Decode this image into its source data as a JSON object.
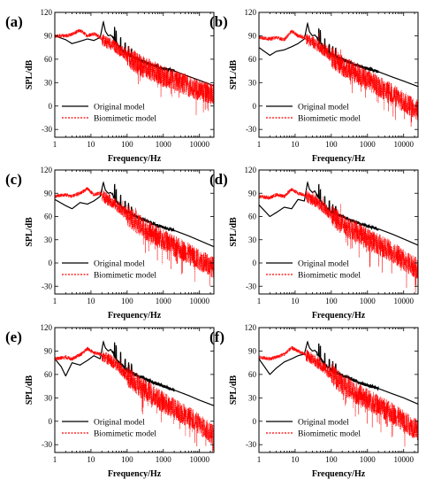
{
  "figure": {
    "colors": {
      "original": "#000000",
      "biomimetic": "#ff0000",
      "axis": "#000000"
    }
  },
  "chart_data": [
    {
      "type": "line",
      "panel_label": "(a)",
      "xlabel": "Frequency/Hz",
      "ylabel": "SPL/dB",
      "xscale": "log",
      "xlim": [
        1,
        25000
      ],
      "ylim": [
        -40,
        120
      ],
      "xticks": [
        1,
        10,
        100,
        1000,
        10000
      ],
      "xtick_labels": [
        "1",
        "10",
        "100",
        "1000",
        "10000"
      ],
      "yticks": [
        -30,
        0,
        30,
        60,
        90,
        120
      ],
      "ytick_labels": [
        "-30",
        "0",
        "30",
        "60",
        "90",
        "120"
      ],
      "legend": {
        "position": "bottom-left",
        "entries": [
          "Original model",
          "Biomimetic model"
        ]
      },
      "series": [
        {
          "name": "Original model",
          "style": "solid",
          "color": "#000000",
          "x": [
            1,
            2,
            3,
            5,
            8,
            12,
            18,
            22,
            25,
            30,
            35,
            40,
            50,
            70,
            100,
            200,
            500,
            1000,
            2000,
            5000,
            10000,
            25000
          ],
          "y": [
            90,
            85,
            80,
            83,
            86,
            84,
            88,
            108,
            96,
            90,
            91,
            88,
            80,
            72,
            66,
            60,
            52,
            48,
            45,
            38,
            33,
            26
          ]
        },
        {
          "name": "Biomimetic model",
          "style": "dotted",
          "color": "#ff0000",
          "x": [
            1,
            2,
            3,
            5,
            8,
            12,
            18,
            25,
            35,
            50,
            70,
            100,
            200,
            500,
            1000,
            2000,
            5000,
            10000,
            25000
          ],
          "y": [
            90,
            90,
            92,
            97,
            90,
            93,
            88,
            82,
            80,
            75,
            70,
            64,
            54,
            45,
            38,
            33,
            26,
            20,
            14
          ]
        }
      ]
    },
    {
      "type": "line",
      "panel_label": "(b)",
      "xlabel": "Frequency/Hz",
      "ylabel": "SPL/dB",
      "xscale": "log",
      "xlim": [
        1,
        25000
      ],
      "ylim": [
        -40,
        120
      ],
      "xticks": [
        1,
        10,
        100,
        1000,
        10000
      ],
      "xtick_labels": [
        "1",
        "10",
        "100",
        "1000",
        "10000"
      ],
      "yticks": [
        -30,
        0,
        30,
        60,
        90,
        120
      ],
      "ytick_labels": [
        "-30",
        "0",
        "30",
        "60",
        "90",
        "120"
      ],
      "legend": {
        "position": "bottom-left",
        "entries": [
          "Original model",
          "Biomimetic model"
        ]
      },
      "series": [
        {
          "name": "Original model",
          "style": "solid",
          "color": "#000000",
          "x": [
            1,
            2,
            3,
            5,
            8,
            12,
            18,
            22,
            25,
            30,
            35,
            40,
            50,
            70,
            100,
            200,
            500,
            1000,
            2000,
            5000,
            10000,
            25000
          ],
          "y": [
            75,
            65,
            70,
            72,
            76,
            80,
            86,
            106,
            95,
            90,
            91,
            88,
            80,
            72,
            66,
            60,
            52,
            48,
            44,
            37,
            32,
            25
          ]
        },
        {
          "name": "Biomimetic model",
          "style": "dotted",
          "color": "#ff0000",
          "x": [
            1,
            2,
            3,
            5,
            8,
            12,
            18,
            25,
            35,
            50,
            70,
            100,
            200,
            500,
            1000,
            2000,
            5000,
            10000,
            25000
          ],
          "y": [
            88,
            86,
            88,
            85,
            96,
            90,
            88,
            84,
            80,
            75,
            70,
            63,
            52,
            42,
            34,
            26,
            15,
            5,
            -5
          ]
        }
      ]
    },
    {
      "type": "line",
      "panel_label": "(c)",
      "xlabel": "Frequency/Hz",
      "ylabel": "SPL/dB",
      "xscale": "log",
      "xlim": [
        1,
        25000
      ],
      "ylim": [
        -40,
        120
      ],
      "xticks": [
        1,
        10,
        100,
        1000,
        10000
      ],
      "xtick_labels": [
        "1",
        "10",
        "100",
        "1000",
        "10000"
      ],
      "yticks": [
        -30,
        0,
        30,
        60,
        90,
        120
      ],
      "ytick_labels": [
        "-30",
        "0",
        "30",
        "60",
        "90",
        "120"
      ],
      "legend": {
        "position": "bottom-left",
        "entries": [
          "Original model",
          "Biomimetic model"
        ]
      },
      "series": [
        {
          "name": "Original model",
          "style": "solid",
          "color": "#000000",
          "x": [
            1,
            2,
            3,
            5,
            8,
            12,
            18,
            22,
            25,
            30,
            35,
            40,
            50,
            70,
            100,
            200,
            500,
            1000,
            2000,
            5000,
            10000,
            25000
          ],
          "y": [
            82,
            74,
            70,
            78,
            76,
            80,
            86,
            104,
            94,
            90,
            91,
            88,
            80,
            72,
            66,
            59,
            51,
            46,
            42,
            35,
            29,
            21
          ]
        },
        {
          "name": "Biomimetic model",
          "style": "dotted",
          "color": "#ff0000",
          "x": [
            1,
            2,
            3,
            5,
            8,
            12,
            18,
            25,
            35,
            50,
            70,
            100,
            200,
            500,
            1000,
            2000,
            5000,
            10000,
            25000
          ],
          "y": [
            86,
            88,
            86,
            90,
            96,
            88,
            90,
            84,
            80,
            75,
            68,
            62,
            50,
            38,
            30,
            22,
            12,
            4,
            -6
          ]
        }
      ]
    },
    {
      "type": "line",
      "panel_label": "(d)",
      "xlabel": "Frequency/Hz",
      "ylabel": "SPL/dB",
      "xscale": "log",
      "xlim": [
        1,
        25000
      ],
      "ylim": [
        -40,
        120
      ],
      "xticks": [
        1,
        10,
        100,
        1000,
        10000
      ],
      "xtick_labels": [
        "1",
        "10",
        "100",
        "1000",
        "10000"
      ],
      "yticks": [
        -30,
        0,
        30,
        60,
        90,
        120
      ],
      "ytick_labels": [
        "-30",
        "0",
        "30",
        "60",
        "90",
        "120"
      ],
      "legend": {
        "position": "bottom-left",
        "entries": [
          "Original model",
          "Biomimetic model"
        ]
      },
      "series": [
        {
          "name": "Original model",
          "style": "solid",
          "color": "#000000",
          "x": [
            1,
            2,
            3,
            5,
            8,
            12,
            18,
            22,
            25,
            30,
            35,
            40,
            50,
            70,
            100,
            200,
            500,
            1000,
            2000,
            5000,
            10000,
            25000
          ],
          "y": [
            75,
            60,
            65,
            72,
            70,
            82,
            80,
            104,
            95,
            91,
            93,
            88,
            80,
            72,
            66,
            60,
            52,
            48,
            44,
            37,
            31,
            23
          ]
        },
        {
          "name": "Biomimetic model",
          "style": "dotted",
          "color": "#ff0000",
          "x": [
            1,
            2,
            3,
            5,
            8,
            12,
            18,
            25,
            35,
            50,
            70,
            100,
            200,
            500,
            1000,
            2000,
            5000,
            10000,
            25000
          ],
          "y": [
            86,
            84,
            88,
            86,
            95,
            90,
            88,
            84,
            80,
            75,
            69,
            62,
            50,
            40,
            32,
            24,
            14,
            4,
            -8
          ]
        }
      ]
    },
    {
      "type": "line",
      "panel_label": "(e)",
      "xlabel": "Frequency/Hz",
      "ylabel": "SPL/dB",
      "xscale": "log",
      "xlim": [
        1,
        25000
      ],
      "ylim": [
        -40,
        120
      ],
      "xticks": [
        1,
        10,
        100,
        1000,
        10000
      ],
      "xtick_labels": [
        "1",
        "10",
        "100",
        "1000",
        "10000"
      ],
      "yticks": [
        -30,
        0,
        30,
        60,
        90,
        120
      ],
      "ytick_labels": [
        "-30",
        "0",
        "30",
        "60",
        "90",
        "120"
      ],
      "legend": {
        "position": "bottom-left",
        "entries": [
          "Original model",
          "Biomimetic model"
        ]
      },
      "series": [
        {
          "name": "Original model",
          "style": "solid",
          "color": "#000000",
          "x": [
            1,
            1.5,
            2,
            3,
            5,
            8,
            12,
            18,
            22,
            25,
            30,
            35,
            40,
            50,
            70,
            100,
            200,
            500,
            1000,
            2000,
            5000,
            10000,
            25000
          ],
          "y": [
            80,
            70,
            58,
            75,
            72,
            78,
            84,
            80,
            102,
            94,
            90,
            92,
            88,
            80,
            72,
            65,
            58,
            50,
            45,
            40,
            33,
            27,
            20
          ]
        },
        {
          "name": "Biomimetic model",
          "style": "dotted",
          "color": "#ff0000",
          "x": [
            1,
            2,
            3,
            5,
            8,
            12,
            18,
            25,
            35,
            50,
            70,
            100,
            200,
            500,
            1000,
            2000,
            5000,
            10000,
            25000
          ],
          "y": [
            80,
            82,
            80,
            85,
            93,
            88,
            86,
            82,
            78,
            72,
            66,
            58,
            46,
            34,
            24,
            16,
            6,
            -4,
            -18
          ]
        }
      ]
    },
    {
      "type": "line",
      "panel_label": "(f)",
      "xlabel": "Frequency/Hz",
      "ylabel": "SPL/dB",
      "xscale": "log",
      "xlim": [
        1,
        25000
      ],
      "ylim": [
        -40,
        120
      ],
      "xticks": [
        1,
        10,
        100,
        1000,
        10000
      ],
      "xtick_labels": [
        "1",
        "10",
        "100",
        "1000",
        "10000"
      ],
      "yticks": [
        -30,
        0,
        30,
        60,
        90,
        120
      ],
      "ytick_labels": [
        "-30",
        "0",
        "30",
        "60",
        "90",
        "120"
      ],
      "legend": {
        "position": "bottom-left",
        "entries": [
          "Original model",
          "Biomimetic model"
        ]
      },
      "series": [
        {
          "name": "Original model",
          "style": "solid",
          "color": "#000000",
          "x": [
            1,
            2,
            3,
            5,
            8,
            12,
            18,
            22,
            25,
            30,
            35,
            40,
            50,
            70,
            100,
            200,
            500,
            1000,
            2000,
            5000,
            10000,
            25000
          ],
          "y": [
            80,
            60,
            68,
            76,
            80,
            84,
            86,
            102,
            94,
            90,
            91,
            88,
            80,
            72,
            66,
            59,
            51,
            46,
            42,
            35,
            30,
            22
          ]
        },
        {
          "name": "Biomimetic model",
          "style": "dotted",
          "color": "#ff0000",
          "x": [
            1,
            2,
            3,
            5,
            8,
            12,
            18,
            25,
            35,
            50,
            70,
            100,
            200,
            500,
            1000,
            2000,
            5000,
            10000,
            25000
          ],
          "y": [
            82,
            80,
            82,
            86,
            94,
            90,
            86,
            82,
            78,
            73,
            67,
            60,
            48,
            36,
            28,
            20,
            10,
            0,
            -12
          ]
        }
      ]
    }
  ]
}
